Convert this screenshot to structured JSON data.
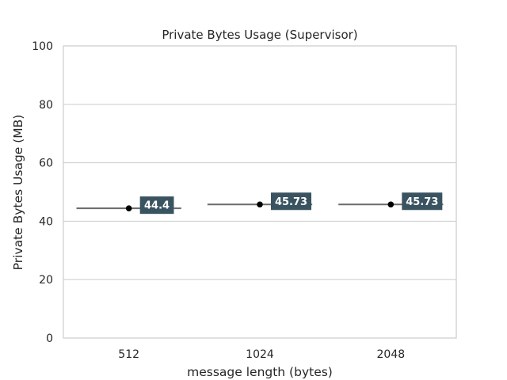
{
  "chart_data": {
    "type": "box",
    "title": "Private Bytes Usage (Supervisor)",
    "xlabel": "message length (bytes)",
    "ylabel": "Private Bytes Usage (MB)",
    "ylim": [
      0,
      100
    ],
    "yticks": [
      0,
      20,
      40,
      60,
      80,
      100
    ],
    "grid": "horizontal",
    "categories": [
      "512",
      "1024",
      "2048"
    ],
    "values": [
      44.4,
      45.73,
      45.73
    ],
    "data_labels": [
      "44.4",
      "45.73",
      "45.73"
    ],
    "colors": {
      "label_bg": "#3a5360",
      "line": "#6a6a6a",
      "marker": "#000000",
      "grid": "#d0d0d0"
    }
  }
}
